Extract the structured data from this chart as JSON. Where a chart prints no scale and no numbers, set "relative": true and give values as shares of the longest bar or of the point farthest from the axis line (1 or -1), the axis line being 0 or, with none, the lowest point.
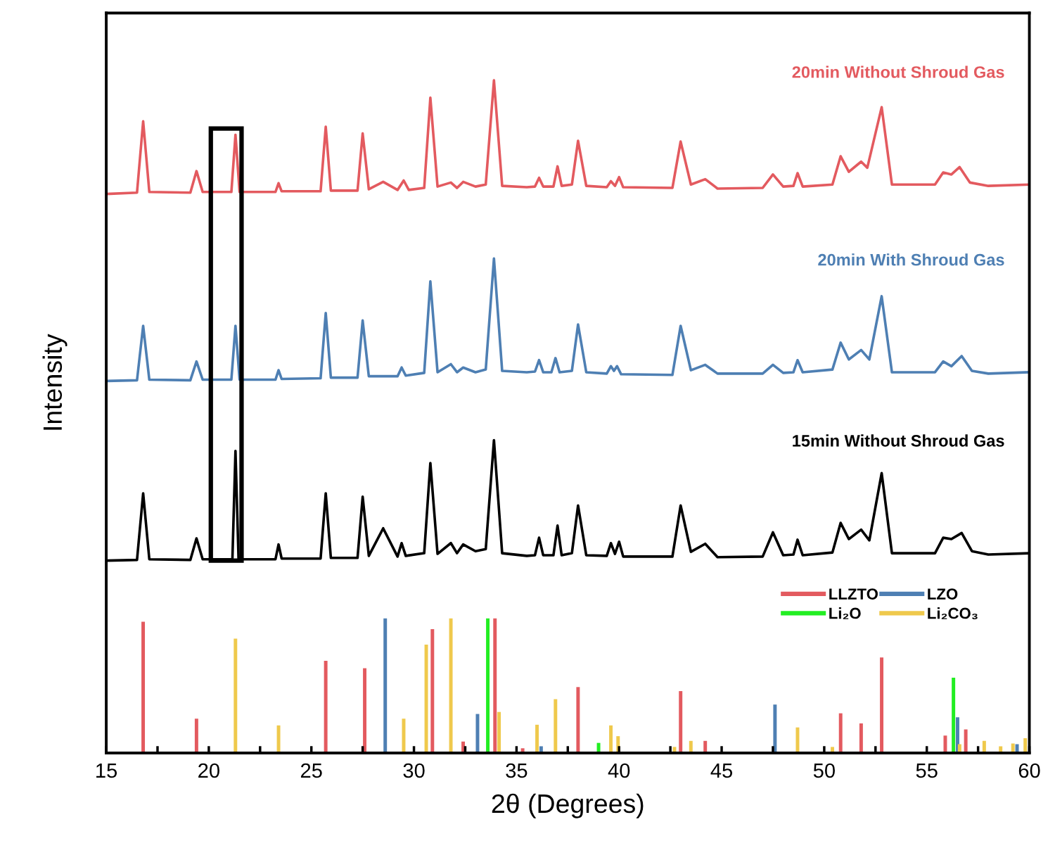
{
  "chart_data": {
    "type": "line",
    "relative": true,
    "xlabel": "2θ (Degrees)",
    "ylabel": "Intensity",
    "xlim": [
      15,
      60
    ],
    "xticks": [
      15,
      {
        "value": 17.5,
        "label": null
      },
      20,
      {
        "value": 22.5,
        "label": null
      },
      25,
      {
        "value": 27.5,
        "label": null
      },
      30,
      {
        "value": 32.5,
        "label": null
      },
      35,
      {
        "value": 37.5,
        "label": null
      },
      40,
      {
        "value": 42.5,
        "label": null
      },
      45,
      {
        "value": 47.5,
        "label": null
      },
      50,
      {
        "value": 52.5,
        "label": null
      },
      55,
      {
        "value": 57.5,
        "label": null
      },
      60
    ],
    "grid": false,
    "legend": "right",
    "marker": "none",
    "line_style": "solid",
    "series": [
      {
        "name": "20min Without Shroud Gas",
        "color": "#e35a5f",
        "x": [
          15.0,
          16.5,
          16.8,
          17.1,
          19.1,
          19.4,
          19.7,
          21.1,
          21.3,
          21.5,
          23.25,
          23.4,
          23.55,
          25.45,
          25.7,
          25.95,
          27.25,
          27.5,
          27.8,
          28.5,
          29.2,
          29.5,
          29.75,
          30.5,
          30.8,
          31.15,
          31.8,
          32.1,
          32.4,
          33.0,
          33.5,
          33.9,
          34.3,
          35.5,
          35.9,
          36.1,
          36.3,
          36.8,
          37.0,
          37.2,
          37.7,
          38.0,
          38.4,
          39.4,
          39.6,
          39.8,
          40.0,
          40.2,
          42.6,
          43.0,
          43.5,
          44.2,
          44.8,
          47.0,
          47.5,
          48.0,
          48.5,
          48.7,
          48.95,
          50.4,
          50.8,
          51.2,
          51.6,
          51.8,
          52.1,
          52.8,
          53.3,
          55.4,
          55.8,
          56.2,
          56.6,
          57.1,
          58.0,
          60.0
        ],
        "values": [
          0.831,
          0.833,
          0.939,
          0.834,
          0.833,
          0.865,
          0.834,
          0.834,
          0.919,
          0.834,
          0.834,
          0.847,
          0.835,
          0.835,
          0.931,
          0.836,
          0.836,
          0.921,
          0.838,
          0.849,
          0.837,
          0.851,
          0.837,
          0.84,
          0.974,
          0.842,
          0.848,
          0.84,
          0.849,
          0.842,
          0.845,
          1.0,
          0.843,
          0.841,
          0.842,
          0.855,
          0.842,
          0.842,
          0.872,
          0.843,
          0.845,
          0.91,
          0.843,
          0.841,
          0.85,
          0.843,
          0.856,
          0.841,
          0.84,
          0.909,
          0.845,
          0.853,
          0.839,
          0.84,
          0.86,
          0.842,
          0.843,
          0.862,
          0.842,
          0.845,
          0.887,
          0.864,
          0.874,
          0.879,
          0.87,
          0.96,
          0.845,
          0.845,
          0.863,
          0.86,
          0.871,
          0.848,
          0.843,
          0.845
        ]
      },
      {
        "name": "20min With Shroud Gas",
        "color": "#4e7fb3",
        "x": [
          15.0,
          16.5,
          16.8,
          17.1,
          19.1,
          19.4,
          19.7,
          21.1,
          21.3,
          21.5,
          23.25,
          23.4,
          23.55,
          25.45,
          25.7,
          25.95,
          27.25,
          27.5,
          27.8,
          29.2,
          29.4,
          29.6,
          30.5,
          30.8,
          31.15,
          31.8,
          32.1,
          32.4,
          33.0,
          33.5,
          33.9,
          34.3,
          35.5,
          35.9,
          36.1,
          36.3,
          36.7,
          36.9,
          37.1,
          37.7,
          38.0,
          38.4,
          39.4,
          39.6,
          39.75,
          39.9,
          40.1,
          42.6,
          43.0,
          43.5,
          44.2,
          44.8,
          47.0,
          47.5,
          48.0,
          48.5,
          48.7,
          48.95,
          50.4,
          50.8,
          51.2,
          51.8,
          52.2,
          52.8,
          53.3,
          55.4,
          55.8,
          56.2,
          56.7,
          57.2,
          58.0,
          60.0
        ],
        "values": [
          0.553,
          0.554,
          0.635,
          0.555,
          0.554,
          0.582,
          0.555,
          0.555,
          0.635,
          0.555,
          0.555,
          0.569,
          0.556,
          0.557,
          0.654,
          0.558,
          0.558,
          0.643,
          0.56,
          0.56,
          0.573,
          0.561,
          0.565,
          0.701,
          0.566,
          0.578,
          0.566,
          0.573,
          0.566,
          0.57,
          0.735,
          0.568,
          0.566,
          0.567,
          0.584,
          0.566,
          0.566,
          0.587,
          0.566,
          0.568,
          0.637,
          0.566,
          0.564,
          0.575,
          0.568,
          0.575,
          0.563,
          0.562,
          0.635,
          0.569,
          0.577,
          0.564,
          0.564,
          0.577,
          0.565,
          0.566,
          0.584,
          0.566,
          0.57,
          0.61,
          0.585,
          0.599,
          0.585,
          0.679,
          0.566,
          0.566,
          0.582,
          0.575,
          0.59,
          0.568,
          0.564,
          0.566
        ]
      },
      {
        "name": "15min Without Shroud Gas",
        "color": "#000000",
        "x": [
          15.0,
          16.5,
          16.8,
          17.1,
          19.1,
          19.4,
          19.7,
          21.15,
          21.3,
          21.45,
          23.25,
          23.4,
          23.55,
          25.45,
          25.7,
          25.95,
          27.25,
          27.5,
          27.8,
          28.5,
          29.2,
          29.4,
          29.6,
          30.5,
          30.8,
          31.15,
          31.8,
          32.1,
          32.4,
          33.0,
          33.5,
          33.9,
          34.3,
          35.5,
          35.9,
          36.1,
          36.3,
          36.8,
          37.0,
          37.2,
          37.7,
          38.0,
          38.4,
          39.4,
          39.6,
          39.8,
          40.0,
          40.2,
          42.6,
          43.0,
          43.5,
          44.2,
          44.8,
          47.0,
          47.5,
          48.0,
          48.5,
          48.7,
          48.95,
          50.4,
          50.8,
          51.2,
          51.8,
          52.2,
          52.8,
          53.3,
          55.4,
          55.8,
          56.2,
          56.7,
          57.2,
          58.0,
          60.0
        ],
        "values": [
          0.286,
          0.287,
          0.386,
          0.288,
          0.287,
          0.319,
          0.288,
          0.288,
          0.449,
          0.288,
          0.288,
          0.31,
          0.289,
          0.289,
          0.386,
          0.29,
          0.29,
          0.381,
          0.293,
          0.334,
          0.292,
          0.312,
          0.293,
          0.297,
          0.431,
          0.296,
          0.312,
          0.297,
          0.31,
          0.3,
          0.303,
          0.465,
          0.297,
          0.293,
          0.294,
          0.32,
          0.294,
          0.294,
          0.338,
          0.294,
          0.297,
          0.368,
          0.294,
          0.293,
          0.312,
          0.296,
          0.314,
          0.292,
          0.292,
          0.368,
          0.299,
          0.311,
          0.291,
          0.292,
          0.328,
          0.294,
          0.295,
          0.317,
          0.294,
          0.298,
          0.342,
          0.318,
          0.332,
          0.316,
          0.416,
          0.297,
          0.297,
          0.32,
          0.318,
          0.327,
          0.3,
          0.295,
          0.297
        ]
      },
      {
        "name": "LLZTO",
        "type": "bar",
        "color": "#e35a5f",
        "x": [
          16.8,
          19.4,
          25.7,
          27.6,
          30.9,
          32.4,
          33.95,
          35.3,
          38.0,
          43.0,
          44.2,
          50.8,
          51.8,
          52.8,
          55.9,
          56.9
        ],
        "values": [
          0.195,
          0.051,
          0.137,
          0.126,
          0.184,
          0.017,
          0.2,
          0.007,
          0.098,
          0.092,
          0.018,
          0.059,
          0.044,
          0.142,
          0.026,
          0.035
        ]
      },
      {
        "name": "LZO",
        "type": "bar",
        "color": "#4e7fb3",
        "x": [
          28.6,
          33.1,
          36.2,
          47.6,
          56.5,
          59.4
        ],
        "values": [
          0.2,
          0.058,
          0.01,
          0.072,
          0.053,
          0.013
        ]
      },
      {
        "name": "Li₂O",
        "type": "bar",
        "color": "#22ee22",
        "x": [
          33.6,
          39.0,
          56.3
        ],
        "values": [
          0.2,
          0.015,
          0.112
        ]
      },
      {
        "name": "Li₂CO₃",
        "type": "bar",
        "color": "#efc94c",
        "x": [
          21.3,
          23.4,
          29.5,
          30.6,
          31.8,
          34.15,
          36.0,
          36.9,
          39.6,
          39.95,
          42.7,
          43.5,
          48.7,
          50.4,
          56.6,
          57.8,
          58.6,
          59.2,
          59.8
        ],
        "values": [
          0.17,
          0.041,
          0.051,
          0.161,
          0.2,
          0.061,
          0.042,
          0.08,
          0.041,
          0.025,
          0.009,
          0.018,
          0.038,
          0.009,
          0.013,
          0.018,
          0.01,
          0.014,
          0.022
        ]
      }
    ]
  }
}
